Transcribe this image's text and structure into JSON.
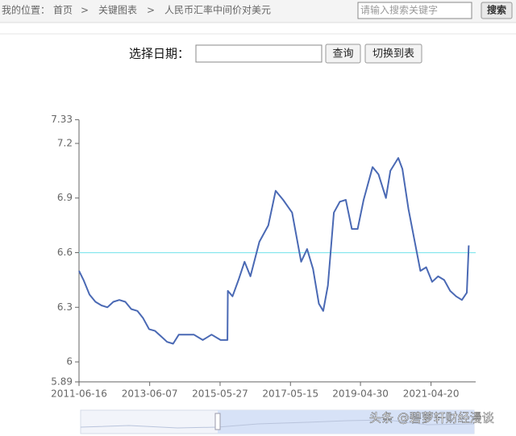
{
  "header": {
    "location_label": "我的位置：",
    "breadcrumb": [
      "首页",
      "关键图表",
      "人民币汇率中间价对美元"
    ],
    "separator": ">",
    "search_placeholder": "请输入搜索关键字",
    "search_button": "搜索"
  },
  "form": {
    "date_label": "选择日期：",
    "query_button": "查询",
    "toggle_button": "切换到表"
  },
  "chart_data": {
    "type": "line",
    "x": [
      "2011-06-16",
      "2011-08-01",
      "2011-10-01",
      "2011-12-01",
      "2012-02-01",
      "2012-04-01",
      "2012-06-01",
      "2012-08-01",
      "2012-10-01",
      "2012-12-01",
      "2013-02-01",
      "2013-04-01",
      "2013-06-01",
      "2013-08-01",
      "2013-10-01",
      "2013-12-01",
      "2014-02-01",
      "2014-04-01",
      "2014-06-01",
      "2014-09-01",
      "2014-12-01",
      "2015-03-01",
      "2015-06-01",
      "2015-08-10",
      "2015-08-14",
      "2015-10-01",
      "2015-12-01",
      "2016-02-01",
      "2016-04-01",
      "2016-07-01",
      "2016-10-01",
      "2016-12-15",
      "2017-03-01",
      "2017-06-01",
      "2017-09-01",
      "2017-11-01",
      "2018-01-01",
      "2018-03-01",
      "2018-04-15",
      "2018-06-01",
      "2018-08-01",
      "2018-10-01",
      "2018-12-01",
      "2019-02-01",
      "2019-04-01",
      "2019-06-01",
      "2019-09-01",
      "2019-11-01",
      "2020-01-15",
      "2020-03-01",
      "2020-05-20",
      "2020-07-01",
      "2020-09-01",
      "2020-11-01",
      "2021-01-01",
      "2021-03-01",
      "2021-05-01",
      "2021-07-01",
      "2021-09-01",
      "2021-11-01",
      "2022-01-01",
      "2022-03-01",
      "2022-04-20",
      "2022-05-10"
    ],
    "series": [
      {
        "name": "人民币汇率中间价对美元",
        "color": "#4a69b4",
        "values": [
          6.5,
          6.45,
          6.37,
          6.33,
          6.31,
          6.3,
          6.33,
          6.34,
          6.33,
          6.29,
          6.28,
          6.24,
          6.18,
          6.17,
          6.14,
          6.11,
          6.1,
          6.15,
          6.15,
          6.15,
          6.12,
          6.15,
          6.12,
          6.12,
          6.39,
          6.36,
          6.45,
          6.55,
          6.47,
          6.66,
          6.75,
          6.94,
          6.89,
          6.82,
          6.55,
          6.62,
          6.51,
          6.32,
          6.28,
          6.42,
          6.82,
          6.88,
          6.89,
          6.73,
          6.73,
          6.89,
          7.07,
          7.03,
          6.9,
          7.05,
          7.12,
          7.06,
          6.84,
          6.67,
          6.5,
          6.52,
          6.44,
          6.47,
          6.45,
          6.39,
          6.36,
          6.34,
          6.38,
          6.64
        ]
      }
    ],
    "xlim": [
      "2011-06-16",
      "2022-07-20"
    ],
    "xticks": [
      "2011-06-16",
      "2013-06-07",
      "2015-05-27",
      "2017-05-15",
      "2019-04-30",
      "2021-04-20"
    ],
    "ylim": [
      5.89,
      7.33
    ],
    "yticks": [
      5.89,
      6,
      6.3,
      6.6,
      6.9,
      7.2,
      7.33
    ],
    "reference_line": {
      "value": 6.6,
      "color": "#86e6ee"
    }
  },
  "watermark": "头条 @碧萝轩财经漫谈"
}
